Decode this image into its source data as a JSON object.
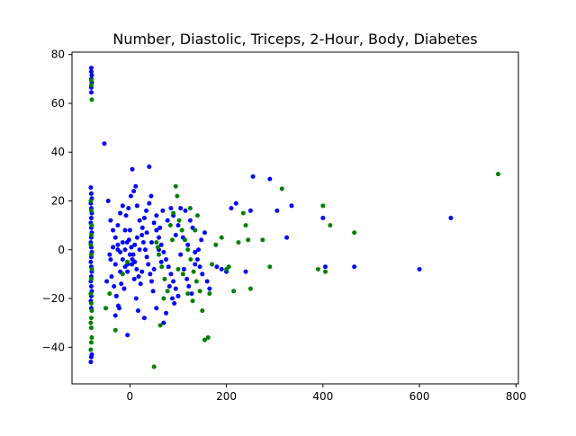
{
  "chart_data": {
    "type": "scatter",
    "title": "Number, Diastolic, Triceps, 2-Hour, Body, Diabetes",
    "xlabel": "",
    "ylabel": "",
    "xlim": [
      -120,
      805
    ],
    "ylim": [
      -55,
      81
    ],
    "xticks": [
      0,
      200,
      400,
      600,
      800
    ],
    "yticks": [
      -40,
      -20,
      0,
      20,
      40,
      60,
      80
    ],
    "xtick_labels": [
      "0",
      "200",
      "400",
      "600",
      "800"
    ],
    "ytick_labels": [
      "−40",
      "−20",
      "0",
      "20",
      "40",
      "60",
      "80"
    ],
    "grid": false,
    "legend": "none",
    "colors": {
      "class_0": "#0000ff",
      "class_1": "#008000"
    },
    "series": [
      {
        "color": "#0000ff",
        "points": [
          [
            -80,
            74.5
          ],
          [
            -80,
            73
          ],
          [
            -79,
            71.5
          ],
          [
            -80,
            70
          ],
          [
            -79,
            68.5
          ],
          [
            -80,
            66.5
          ],
          [
            -80,
            64.5
          ],
          [
            -81,
            25.5
          ],
          [
            -80,
            23
          ],
          [
            -79,
            21
          ],
          [
            -81,
            19
          ],
          [
            -80,
            17
          ],
          [
            -79,
            15
          ],
          [
            -80,
            13
          ],
          [
            -81,
            11
          ],
          [
            -80,
            9
          ],
          [
            -79,
            7
          ],
          [
            -80,
            5
          ],
          [
            -81,
            3
          ],
          [
            -80,
            1
          ],
          [
            -79,
            -1
          ],
          [
            -80,
            -3
          ],
          [
            -81,
            -5
          ],
          [
            -80,
            -7
          ],
          [
            -79,
            -9
          ],
          [
            -80,
            -11
          ],
          [
            -81,
            -13
          ],
          [
            -80,
            -15
          ],
          [
            -79,
            -17
          ],
          [
            -80,
            -19
          ],
          [
            -81,
            -21
          ],
          [
            -80,
            -24
          ],
          [
            -79,
            -43
          ],
          [
            -80,
            -44
          ],
          [
            -81,
            -46
          ],
          [
            -53,
            43.5
          ],
          [
            -45,
            20
          ],
          [
            -40,
            12
          ],
          [
            -35,
            8
          ],
          [
            -30,
            5
          ],
          [
            -25,
            2
          ],
          [
            -20,
            -1
          ],
          [
            -15,
            -4
          ],
          [
            -10,
            -7
          ],
          [
            -5,
            -9
          ],
          [
            -42,
            -2
          ],
          [
            -38,
            -11
          ],
          [
            -33,
            -15
          ],
          [
            -28,
            -19
          ],
          [
            -22,
            -24
          ],
          [
            -18,
            -14
          ],
          [
            -12,
            -16
          ],
          [
            -8,
            14
          ],
          [
            -3,
            17
          ],
          [
            2,
            22
          ],
          [
            5,
            33
          ],
          [
            8,
            24
          ],
          [
            12,
            26
          ],
          [
            15,
            18
          ],
          [
            20,
            12
          ],
          [
            25,
            6
          ],
          [
            28,
            3
          ],
          [
            32,
            0
          ],
          [
            35,
            -3
          ],
          [
            38,
            -6
          ],
          [
            42,
            -10
          ],
          [
            45,
            -13
          ],
          [
            48,
            -17
          ],
          [
            -2,
            4
          ],
          [
            3,
            1
          ],
          [
            7,
            -2
          ],
          [
            10,
            -5
          ],
          [
            14,
            -8
          ],
          [
            18,
            -11
          ],
          [
            22,
            -14
          ],
          [
            26,
            9
          ],
          [
            30,
            13
          ],
          [
            34,
            16
          ],
          [
            40,
            19
          ],
          [
            44,
            22
          ],
          [
            50,
            11
          ],
          [
            55,
            8
          ],
          [
            60,
            5
          ],
          [
            65,
            2
          ],
          [
            70,
            -1
          ],
          [
            75,
            -4
          ],
          [
            80,
            -7
          ],
          [
            85,
            -10
          ],
          [
            90,
            -13
          ],
          [
            95,
            -16
          ],
          [
            100,
            -19
          ],
          [
            -25,
            10
          ],
          [
            -20,
            15
          ],
          [
            -15,
            18
          ],
          [
            -10,
            8
          ],
          [
            -6,
            3
          ],
          [
            0,
            -2
          ],
          [
            4,
            -6
          ],
          [
            9,
            -12
          ],
          [
            13,
            -20
          ],
          [
            17,
            -25
          ],
          [
            -30,
            -27
          ],
          [
            -24,
            -23
          ],
          [
            -5,
            -35
          ],
          [
            40,
            34
          ],
          [
            30,
            -28
          ],
          [
            55,
            -24
          ],
          [
            70,
            -30
          ],
          [
            75,
            -26
          ],
          [
            105,
            17
          ],
          [
            115,
            16
          ],
          [
            125,
            12
          ],
          [
            130,
            9
          ],
          [
            110,
            5
          ],
          [
            120,
            2
          ],
          [
            135,
            -1
          ],
          [
            140,
            -4
          ],
          [
            145,
            -7
          ],
          [
            150,
            -10
          ],
          [
            160,
            -13
          ],
          [
            165,
            -16
          ],
          [
            100,
            10
          ],
          [
            90,
            14
          ],
          [
            85,
            17
          ],
          [
            95,
            6
          ],
          [
            105,
            -2
          ],
          [
            112,
            -8
          ],
          [
            118,
            -12
          ],
          [
            122,
            -15
          ],
          [
            128,
            -18
          ],
          [
            135,
            -6
          ],
          [
            142,
            0
          ],
          [
            148,
            4
          ],
          [
            155,
            7
          ],
          [
            180,
            -7
          ],
          [
            190,
            -8
          ],
          [
            200,
            -9
          ],
          [
            210,
            17
          ],
          [
            220,
            19
          ],
          [
            240,
            -9
          ],
          [
            250,
            16
          ],
          [
            255,
            30
          ],
          [
            290,
            29
          ],
          [
            305,
            16
          ],
          [
            325,
            5
          ],
          [
            335,
            18
          ],
          [
            400,
            13
          ],
          [
            405,
            -7
          ],
          [
            465,
            -7
          ],
          [
            600,
            -8
          ],
          [
            665,
            13
          ],
          [
            60,
            0
          ],
          [
            65,
            -5
          ],
          [
            50,
            -8
          ],
          [
            45,
            3
          ],
          [
            35,
            7
          ],
          [
            25,
            -9
          ],
          [
            20,
            0
          ],
          [
            15,
            5
          ],
          [
            10,
            2
          ],
          [
            5,
            -4
          ],
          [
            0,
            8
          ],
          [
            -5,
            -6
          ],
          [
            -10,
            0
          ],
          [
            -15,
            3
          ],
          [
            -20,
            -9
          ],
          [
            -25,
            0
          ],
          [
            -30,
            -6
          ],
          [
            -35,
            1
          ],
          [
            -40,
            -4
          ],
          [
            -48,
            -13
          ],
          [
            55,
            14
          ],
          [
            62,
            9
          ],
          [
            68,
            16
          ],
          [
            78,
            12
          ],
          [
            82,
            -15
          ],
          [
            88,
            -20
          ],
          [
            92,
            -22
          ]
        ]
      },
      {
        "color": "#008000",
        "points": [
          [
            -80,
            69.5
          ],
          [
            -80,
            67.5
          ],
          [
            -79,
            61.5
          ],
          [
            -81,
            20
          ],
          [
            -80,
            16
          ],
          [
            -79,
            10
          ],
          [
            -80,
            6
          ],
          [
            -81,
            2
          ],
          [
            -80,
            -2
          ],
          [
            -79,
            -8
          ],
          [
            -80,
            -12
          ],
          [
            -81,
            -18
          ],
          [
            -80,
            -22
          ],
          [
            -79,
            -25
          ],
          [
            -80,
            -28
          ],
          [
            -81,
            -30
          ],
          [
            -80,
            -32
          ],
          [
            -79,
            -36
          ],
          [
            -80,
            -38
          ],
          [
            -81,
            -41
          ],
          [
            -50,
            -24
          ],
          [
            -42,
            -18
          ],
          [
            -30,
            -33
          ],
          [
            -15,
            -10
          ],
          [
            -5,
            -5
          ],
          [
            55,
            3
          ],
          [
            60,
            -2
          ],
          [
            66,
            -7
          ],
          [
            72,
            -12
          ],
          [
            78,
            -17
          ],
          [
            84,
            10
          ],
          [
            90,
            15
          ],
          [
            95,
            26
          ],
          [
            98,
            22
          ],
          [
            102,
            12
          ],
          [
            108,
            8
          ],
          [
            114,
            4
          ],
          [
            120,
            0
          ],
          [
            126,
            -4
          ],
          [
            132,
            -9
          ],
          [
            138,
            -13
          ],
          [
            145,
            -17
          ],
          [
            150,
            -25
          ],
          [
            155,
            -37
          ],
          [
            162,
            -36
          ],
          [
            165,
            -18
          ],
          [
            170,
            -6
          ],
          [
            178,
            2
          ],
          [
            190,
            5
          ],
          [
            200,
            -8
          ],
          [
            205,
            -7
          ],
          [
            215,
            -17
          ],
          [
            225,
            3
          ],
          [
            235,
            15
          ],
          [
            240,
            10
          ],
          [
            245,
            4
          ],
          [
            250,
            -16
          ],
          [
            275,
            4
          ],
          [
            290,
            -7
          ],
          [
            315,
            25
          ],
          [
            390,
            -8
          ],
          [
            400,
            18
          ],
          [
            405,
            -9
          ],
          [
            415,
            10
          ],
          [
            465,
            7
          ],
          [
            763,
            31
          ],
          [
            50,
            -48
          ],
          [
            63,
            -31
          ],
          [
            70,
            -20
          ],
          [
            110,
            -10
          ],
          [
            125,
            17
          ],
          [
            130,
            -21
          ],
          [
            140,
            14
          ],
          [
            88,
            4
          ],
          [
            100,
            -8
          ],
          [
            58,
            1
          ],
          [
            120,
            -18
          ],
          [
            135,
            8
          ]
        ]
      }
    ]
  }
}
